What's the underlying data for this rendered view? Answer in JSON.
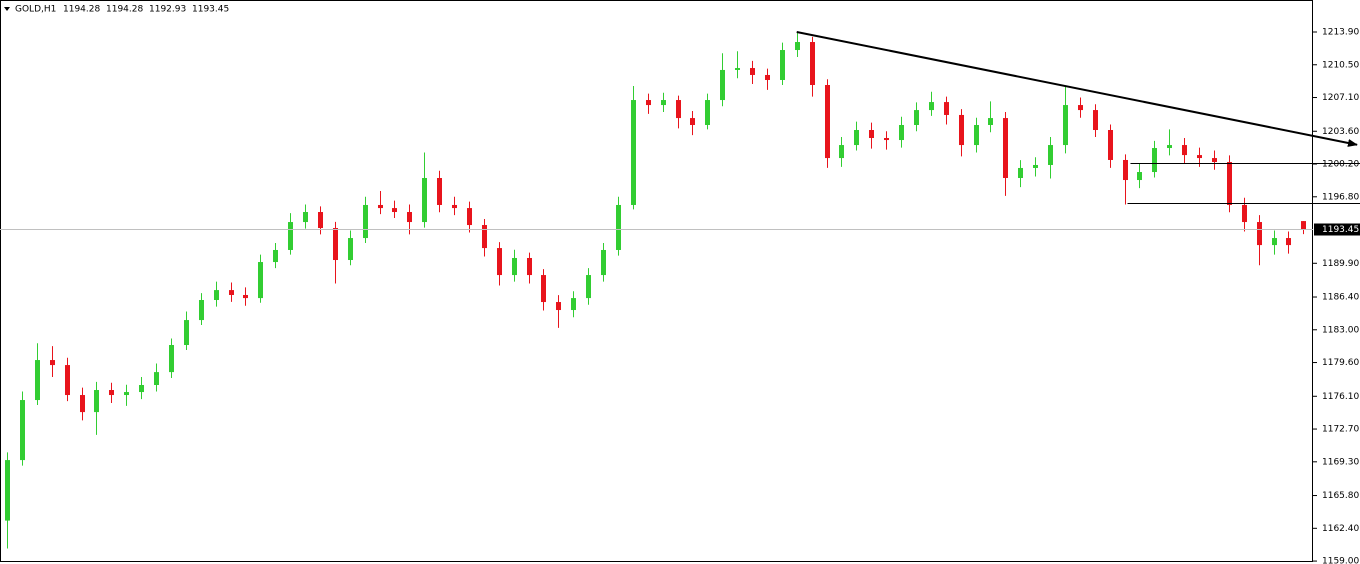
{
  "chart_data": {
    "type": "candlestick",
    "title": "GOLD,H1",
    "up_color": "#32cd32",
    "down_color": "#e8141c",
    "xlim": [
      -0.47,
      87.65
    ],
    "ylim": [
      1158.8,
      1217.22
    ],
    "yticks": [
      {
        "value": 1159.0,
        "label": "1159.00"
      },
      {
        "value": 1162.4,
        "label": "1162.40"
      },
      {
        "value": 1165.8,
        "label": "1165.80"
      },
      {
        "value": 1169.3,
        "label": "1169.30"
      },
      {
        "value": 1172.7,
        "label": "1172.70"
      },
      {
        "value": 1176.1,
        "label": "1176.10"
      },
      {
        "value": 1179.6,
        "label": "1179.60"
      },
      {
        "value": 1183.0,
        "label": "1183.00"
      },
      {
        "value": 1186.4,
        "label": "1186.40"
      },
      {
        "value": 1189.9,
        "label": "1189.90"
      },
      {
        "value": 1196.8,
        "label": "1196.80"
      },
      {
        "value": 1200.2,
        "label": "1200.20"
      },
      {
        "value": 1203.6,
        "label": "1203.60"
      },
      {
        "value": 1207.1,
        "label": "1207.10"
      },
      {
        "value": 1210.5,
        "label": "1210.50"
      },
      {
        "value": 1213.9,
        "label": "1213.90"
      }
    ],
    "open": [
      1163.2,
      1169.48,
      1175.71,
      1179.86,
      1179.34,
      1176.23,
      1174.46,
      1176.75,
      1176.23,
      1176.54,
      1177.27,
      1178.61,
      1181.42,
      1184.01,
      1186.09,
      1187.12,
      1186.61,
      1186.29,
      1190.03,
      1191.28,
      1194.18,
      1195.22,
      1193.56,
      1190.24,
      1192.52,
      1195.95,
      1195.63,
      1195.22,
      1194.18,
      1198.75,
      1195.95,
      1195.63,
      1193.87,
      1191.48,
      1188.68,
      1190.45,
      1188.68,
      1185.88,
      1185.05,
      1186.29,
      1188.68,
      1191.28,
      1195.95,
      1206.84,
      1206.32,
      1206.84,
      1204.97,
      1204.25,
      1206.84,
      1209.96,
      1210.16,
      1209.44,
      1208.92,
      1212.03,
      1212.86,
      1208.4,
      1200.82,
      1202.17,
      1203.73,
      1202.9,
      1202.69,
      1204.25,
      1205.8,
      1206.63,
      1205.29,
      1202.17,
      1204.25,
      1204.97,
      1198.75,
      1199.79,
      1200.1,
      1202.17,
      1206.32,
      1205.8,
      1203.73,
      1200.62,
      1198.54,
      1199.37,
      1201.86,
      1202.17,
      1201.13,
      1200.82,
      1200.41,
      1195.95,
      1194.18,
      1191.79,
      1192.52,
      1194.28
    ],
    "high": [
      1170.28,
      1176.6,
      1181.6,
      1181.3,
      1180.1,
      1177.0,
      1177.6,
      1177.5,
      1177.3,
      1178.1,
      1179.5,
      1182.1,
      1184.9,
      1186.8,
      1188.0,
      1187.9,
      1187.4,
      1190.8,
      1192.0,
      1195.1,
      1196.0,
      1195.8,
      1194.2,
      1193.3,
      1196.8,
      1197.4,
      1196.4,
      1196.0,
      1201.4,
      1199.5,
      1196.8,
      1196.3,
      1194.5,
      1192.1,
      1191.3,
      1191.0,
      1189.3,
      1186.6,
      1187.0,
      1189.4,
      1192.0,
      1196.8,
      1208.3,
      1207.5,
      1207.6,
      1207.3,
      1205.7,
      1207.5,
      1211.7,
      1211.9,
      1210.9,
      1210.1,
      1212.8,
      1213.9,
      1213.4,
      1209.0,
      1203.0,
      1204.6,
      1204.5,
      1203.6,
      1205.1,
      1206.6,
      1207.7,
      1207.2,
      1205.9,
      1205.0,
      1206.7,
      1205.6,
      1200.6,
      1200.9,
      1203.0,
      1208.2,
      1207.1,
      1206.4,
      1204.3,
      1201.2,
      1200.2,
      1202.6,
      1203.8,
      1202.9,
      1201.9,
      1201.6,
      1201.1,
      1196.7,
      1194.9,
      1193.3,
      1193.2,
      1194.28
    ],
    "low": [
      1160.3,
      1168.9,
      1175.2,
      1178.1,
      1175.6,
      1173.6,
      1172.1,
      1175.4,
      1175.1,
      1175.8,
      1176.6,
      1178.0,
      1180.9,
      1183.5,
      1185.4,
      1185.9,
      1185.5,
      1185.8,
      1189.4,
      1190.8,
      1193.5,
      1192.9,
      1187.8,
      1189.7,
      1192.0,
      1195.0,
      1194.6,
      1192.9,
      1193.6,
      1195.2,
      1194.9,
      1193.1,
      1190.6,
      1187.6,
      1188.0,
      1187.8,
      1185.0,
      1183.2,
      1184.3,
      1185.6,
      1188.0,
      1190.7,
      1195.5,
      1205.4,
      1205.6,
      1203.9,
      1203.2,
      1203.8,
      1206.2,
      1209.1,
      1208.5,
      1207.9,
      1208.4,
      1211.3,
      1207.2,
      1199.8,
      1199.9,
      1201.6,
      1201.8,
      1201.7,
      1201.9,
      1203.6,
      1205.2,
      1204.3,
      1201.0,
      1201.4,
      1203.5,
      1196.9,
      1197.8,
      1198.9,
      1198.7,
      1201.3,
      1205.0,
      1203.0,
      1199.8,
      1196.0,
      1197.7,
      1198.8,
      1201.1,
      1200.3,
      1199.9,
      1199.6,
      1195.2,
      1193.2,
      1189.7,
      1190.8,
      1190.9,
      1192.93
    ],
    "close": [
      1169.48,
      1175.71,
      1179.86,
      1179.34,
      1176.23,
      1174.46,
      1176.75,
      1176.23,
      1176.54,
      1177.27,
      1178.61,
      1181.42,
      1184.01,
      1186.09,
      1187.12,
      1186.61,
      1186.29,
      1190.03,
      1191.28,
      1194.18,
      1195.22,
      1193.56,
      1190.24,
      1192.52,
      1195.95,
      1195.63,
      1195.22,
      1194.18,
      1198.75,
      1195.95,
      1195.63,
      1193.87,
      1191.48,
      1188.68,
      1190.45,
      1188.68,
      1185.88,
      1185.05,
      1186.29,
      1188.68,
      1191.28,
      1195.95,
      1206.84,
      1206.32,
      1206.84,
      1204.97,
      1204.25,
      1206.84,
      1209.96,
      1210.16,
      1209.44,
      1208.92,
      1212.03,
      1212.86,
      1208.4,
      1200.82,
      1202.17,
      1203.73,
      1202.9,
      1202.69,
      1204.25,
      1205.8,
      1206.63,
      1205.29,
      1202.17,
      1204.25,
      1204.97,
      1198.75,
      1199.79,
      1200.1,
      1202.17,
      1206.32,
      1205.8,
      1203.73,
      1200.62,
      1198.54,
      1199.37,
      1201.86,
      1202.17,
      1201.13,
      1200.82,
      1200.41,
      1195.95,
      1194.18,
      1191.79,
      1192.52,
      1191.79,
      1193.45
    ],
    "trendline": {
      "x": [
        53,
        90.6
      ],
      "y": [
        1213.9,
        1202.2
      ]
    },
    "levels": [
      {
        "start": 75.4,
        "price": 1200.3
      },
      {
        "start": 75.2,
        "price": 1196.15
      }
    ]
  }
}
